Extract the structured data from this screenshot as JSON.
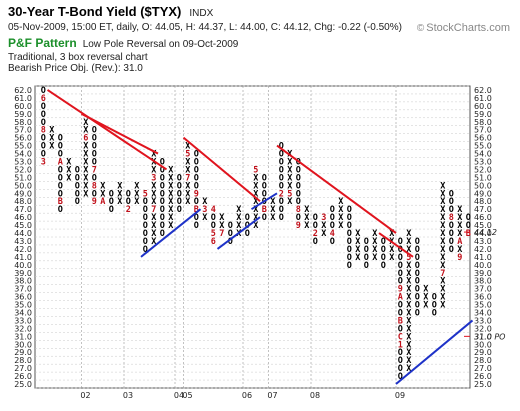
{
  "header": {
    "title": "30-Year T-Bond Yield ($TYX)",
    "ticker": "INDX",
    "quote": "05-Nov-2009, 15:00 ET, daily, O: 44.05, H: 44.37, L: 44.00, C: 44.12, Chg: -0.22 (-0.50%)",
    "pattern_label": "P&F Pattern",
    "pattern": "Low Pole Reversal on 09-Oct-2009",
    "reversal": "Traditional, 3 box reversal chart",
    "objective": "Bearish Price Obj. (Rev.): 31.0",
    "brand": "StockCharts.com"
  },
  "chart_data": {
    "type": "point_and_figure",
    "box_size": 1.0,
    "reversal": 3,
    "ylim": [
      25.0,
      62.0
    ],
    "y_ticks": [
      "25.0",
      "26.0",
      "27.0",
      "28.0",
      "29.0",
      "30.0",
      "31.0",
      "32.0",
      "33.0",
      "34.0",
      "35.0",
      "36.0",
      "37.0",
      "38.0",
      "39.0",
      "40.0",
      "41.0",
      "42.0",
      "43.0",
      "44.0",
      "45.0",
      "46.0",
      "47.0",
      "48.0",
      "49.0",
      "50.0",
      "51.0",
      "52.0",
      "53.0",
      "54.0",
      "55.0",
      "56.0",
      "57.0",
      "58.0",
      "59.0",
      "60.0",
      "61.0",
      "62.0"
    ],
    "x_ticks": [
      {
        "label": "02",
        "col": 5
      },
      {
        "label": "03",
        "col": 10
      },
      {
        "label": "04",
        "col": 16
      },
      {
        "label": "05",
        "col": 17
      },
      {
        "label": "06",
        "col": 24
      },
      {
        "label": "07",
        "col": 27
      },
      {
        "label": "08",
        "col": 32
      },
      {
        "label": "09",
        "col": 42
      }
    ],
    "columns": [
      {
        "type": "O",
        "high": 62,
        "low": 53,
        "months": [
          {
            "box": 61,
            "label": "6"
          },
          {
            "box": 57,
            "label": "8"
          },
          {
            "box": 53,
            "label": "3"
          }
        ]
      },
      {
        "type": "X",
        "high": 57,
        "low": 55
      },
      {
        "type": "O",
        "high": 56,
        "low": 47,
        "months": [
          {
            "box": 53,
            "label": "A"
          },
          {
            "box": 48,
            "label": "B"
          }
        ]
      },
      {
        "type": "X",
        "high": 53,
        "low": 51
      },
      {
        "type": "O",
        "high": 52,
        "low": 48
      },
      {
        "type": "X",
        "high": 58,
        "low": 49,
        "months": [
          {
            "box": 56,
            "label": "6"
          }
        ]
      },
      {
        "type": "O",
        "high": 57,
        "low": 48,
        "months": [
          {
            "box": 52,
            "label": "7"
          },
          {
            "box": 50,
            "label": "8"
          },
          {
            "box": 48,
            "label": "9"
          }
        ]
      },
      {
        "type": "X",
        "high": 50,
        "low": 48,
        "months": [
          {
            "box": 48,
            "label": "A"
          }
        ]
      },
      {
        "type": "O",
        "high": 49,
        "low": 47
      },
      {
        "type": "X",
        "high": 50,
        "low": 48
      },
      {
        "type": "O",
        "high": 49,
        "low": 47,
        "months": [
          {
            "box": 47,
            "label": "2"
          }
        ]
      },
      {
        "type": "X",
        "high": 50,
        "low": 48
      },
      {
        "type": "O",
        "high": 49,
        "low": 42,
        "months": [
          {
            "box": 49,
            "label": "5"
          }
        ]
      },
      {
        "type": "X",
        "high": 54,
        "low": 43,
        "months": [
          {
            "box": 51,
            "label": "3"
          },
          {
            "box": 47,
            "label": "7"
          }
        ]
      },
      {
        "type": "O",
        "high": 53,
        "low": 44
      },
      {
        "type": "X",
        "high": 52,
        "low": 45
      },
      {
        "type": "O",
        "high": 51,
        "low": 47
      },
      {
        "type": "X",
        "high": 55,
        "low": 48,
        "months": [
          {
            "box": 54,
            "label": "5"
          },
          {
            "box": 51,
            "label": "7"
          }
        ]
      },
      {
        "type": "O",
        "high": 54,
        "low": 45,
        "months": [
          {
            "box": 49,
            "label": "9"
          },
          {
            "box": 47,
            "label": "B"
          }
        ]
      },
      {
        "type": "X",
        "high": 48,
        "low": 46,
        "months": [
          {
            "box": 47,
            "label": "3"
          }
        ]
      },
      {
        "type": "O",
        "high": 47,
        "low": 43,
        "months": [
          {
            "box": 47,
            "label": "4"
          },
          {
            "box": 44,
            "label": "5"
          },
          {
            "box": 43,
            "label": "6"
          }
        ]
      },
      {
        "type": "X",
        "high": 46,
        "low": 44,
        "months": [
          {
            "box": 44,
            "label": "7"
          }
        ]
      },
      {
        "type": "O",
        "high": 45,
        "low": 43
      },
      {
        "type": "X",
        "high": 47,
        "low": 44
      },
      {
        "type": "O",
        "high": 46,
        "low": 44
      },
      {
        "type": "X",
        "high": 52,
        "low": 45,
        "months": [
          {
            "box": 52,
            "label": "5"
          }
        ]
      },
      {
        "type": "O",
        "high": 51,
        "low": 46,
        "months": [
          {
            "box": 47,
            "label": "B"
          }
        ]
      },
      {
        "type": "X",
        "high": 48,
        "low": 46
      },
      {
        "type": "O",
        "high": 55,
        "low": 46,
        "months": [
          {
            "box": 49,
            "label": "2"
          }
        ]
      },
      {
        "type": "X",
        "high": 54,
        "low": 48,
        "months": [
          {
            "box": 49,
            "label": "5"
          }
        ]
      },
      {
        "type": "O",
        "high": 53,
        "low": 45,
        "months": [
          {
            "box": 47,
            "label": "8"
          },
          {
            "box": 45,
            "label": "9"
          }
        ]
      },
      {
        "type": "X",
        "high": 47,
        "low": 45
      },
      {
        "type": "O",
        "high": 46,
        "low": 43,
        "months": [
          {
            "box": 44,
            "label": "2"
          }
        ]
      },
      {
        "type": "X",
        "high": 46,
        "low": 44,
        "months": [
          {
            "box": 46,
            "label": "3"
          }
        ]
      },
      {
        "type": "O",
        "high": 47,
        "low": 43,
        "months": [
          {
            "box": 44,
            "label": "4"
          }
        ]
      },
      {
        "type": "X",
        "high": 48,
        "low": 45
      },
      {
        "type": "O",
        "high": 47,
        "low": 40
      },
      {
        "type": "X",
        "high": 44,
        "low": 41
      },
      {
        "type": "O",
        "high": 43,
        "low": 40
      },
      {
        "type": "X",
        "high": 44,
        "low": 41
      },
      {
        "type": "O",
        "high": 43,
        "low": 40
      },
      {
        "type": "X",
        "high": 44,
        "low": 41
      },
      {
        "type": "O",
        "high": 43,
        "low": 26,
        "months": [
          {
            "box": 37,
            "label": "9"
          },
          {
            "box": 36,
            "label": "A"
          },
          {
            "box": 33,
            "label": "B"
          },
          {
            "box": 31,
            "label": "C"
          },
          {
            "box": 30,
            "label": "1"
          }
        ]
      },
      {
        "type": "X",
        "high": 44,
        "low": 27,
        "months": [
          {
            "box": 41,
            "label": "5"
          }
        ]
      },
      {
        "type": "O",
        "high": 43,
        "low": 34
      },
      {
        "type": "X",
        "high": 37,
        "low": 35
      },
      {
        "type": "O",
        "high": 36,
        "low": 34
      },
      {
        "type": "X",
        "high": 50,
        "low": 35,
        "months": [
          {
            "box": 39,
            "label": "7"
          }
        ]
      },
      {
        "type": "O",
        "high": 49,
        "low": 42,
        "months": [
          {
            "box": 46,
            "label": "8"
          }
        ]
      },
      {
        "type": "X",
        "high": 47,
        "low": 41,
        "months": [
          {
            "box": 41,
            "label": "9"
          },
          {
            "box": 43,
            "label": "A"
          }
        ]
      },
      {
        "type": "O",
        "high": 46,
        "low": 44,
        "months": [
          {
            "box": 44,
            "label": "B"
          }
        ]
      }
    ],
    "trendlines": [
      {
        "kind": "resistance",
        "color": "#e0141e",
        "from": [
          1,
          61.5
        ],
        "to": [
          14,
          51.5
        ]
      },
      {
        "kind": "resistance",
        "color": "#e0141e",
        "from": [
          5,
          58.5
        ],
        "to": [
          13,
          53.5
        ]
      },
      {
        "kind": "resistance",
        "color": "#e0141e",
        "from": [
          17,
          55.5
        ],
        "to": [
          25,
          47.5
        ]
      },
      {
        "kind": "resistance",
        "color": "#e0141e",
        "from": [
          28,
          54.5
        ],
        "to": [
          41,
          43.5
        ]
      },
      {
        "kind": "resistance",
        "color": "#e0141e",
        "from": [
          40,
          43.5
        ],
        "to": [
          43,
          40.5
        ]
      },
      {
        "kind": "support",
        "color": "#1e32c8",
        "from": [
          12,
          40.5
        ],
        "to": [
          18,
          46.5
        ]
      },
      {
        "kind": "support",
        "color": "#1e32c8",
        "from": [
          21,
          41.5
        ],
        "to": [
          25,
          45.5
        ]
      },
      {
        "kind": "support",
        "color": "#1e32c8",
        "from": [
          25,
          46.5
        ],
        "to": [
          27,
          48.5
        ]
      },
      {
        "kind": "support",
        "color": "#1e32c8",
        "from": [
          42,
          24.5
        ],
        "to": [
          50,
          32.5
        ]
      }
    ],
    "markers": [
      {
        "value": 44.12,
        "label": "44.12",
        "color": "#e0141e"
      },
      {
        "value": 31.0,
        "label": "31.0 PO",
        "color": "#e0141e"
      }
    ],
    "colors": {
      "x": "#000000",
      "o": "#000000",
      "month": "#c0101a",
      "resistance": "#e0141e",
      "support": "#1e32c8",
      "grid": "#c8c8c8"
    }
  }
}
